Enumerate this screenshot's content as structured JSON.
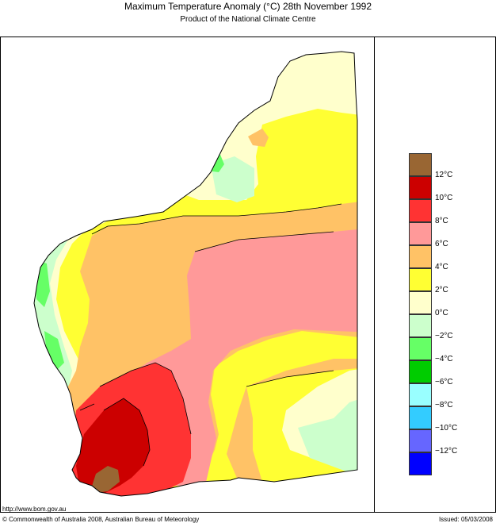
{
  "title_text": "Maximum Temperature Anomaly (°C)  28th November 1992",
  "subtitle": "Product of the National Climate Centre",
  "legend": {
    "unit": "°C",
    "ticks": [
      "12°C",
      "10°C",
      "8°C",
      "6°C",
      "4°C",
      "2°C",
      "0°C",
      "−2°C",
      "−4°C",
      "−6°C",
      "−8°C",
      "−10°C",
      "−12°C"
    ],
    "colors": [
      "#996633",
      "#cc0000",
      "#ff3333",
      "#ff9999",
      "#ffc266",
      "#ffff33",
      "#ffffcc",
      "#ccffcc",
      "#66ff66",
      "#00cc00",
      "#99ffff",
      "#33ccff",
      "#6666ff",
      "#0000ff"
    ]
  },
  "map_colors": {
    "outside": "#ffffff",
    "coast": "#000000"
  },
  "footer": {
    "url": "http://www.bom.gov.au",
    "copyright": "© Commonwealth of Australia 2008, Australian Bureau of Meteorology",
    "issued": "Issued: 05/03/2008"
  }
}
